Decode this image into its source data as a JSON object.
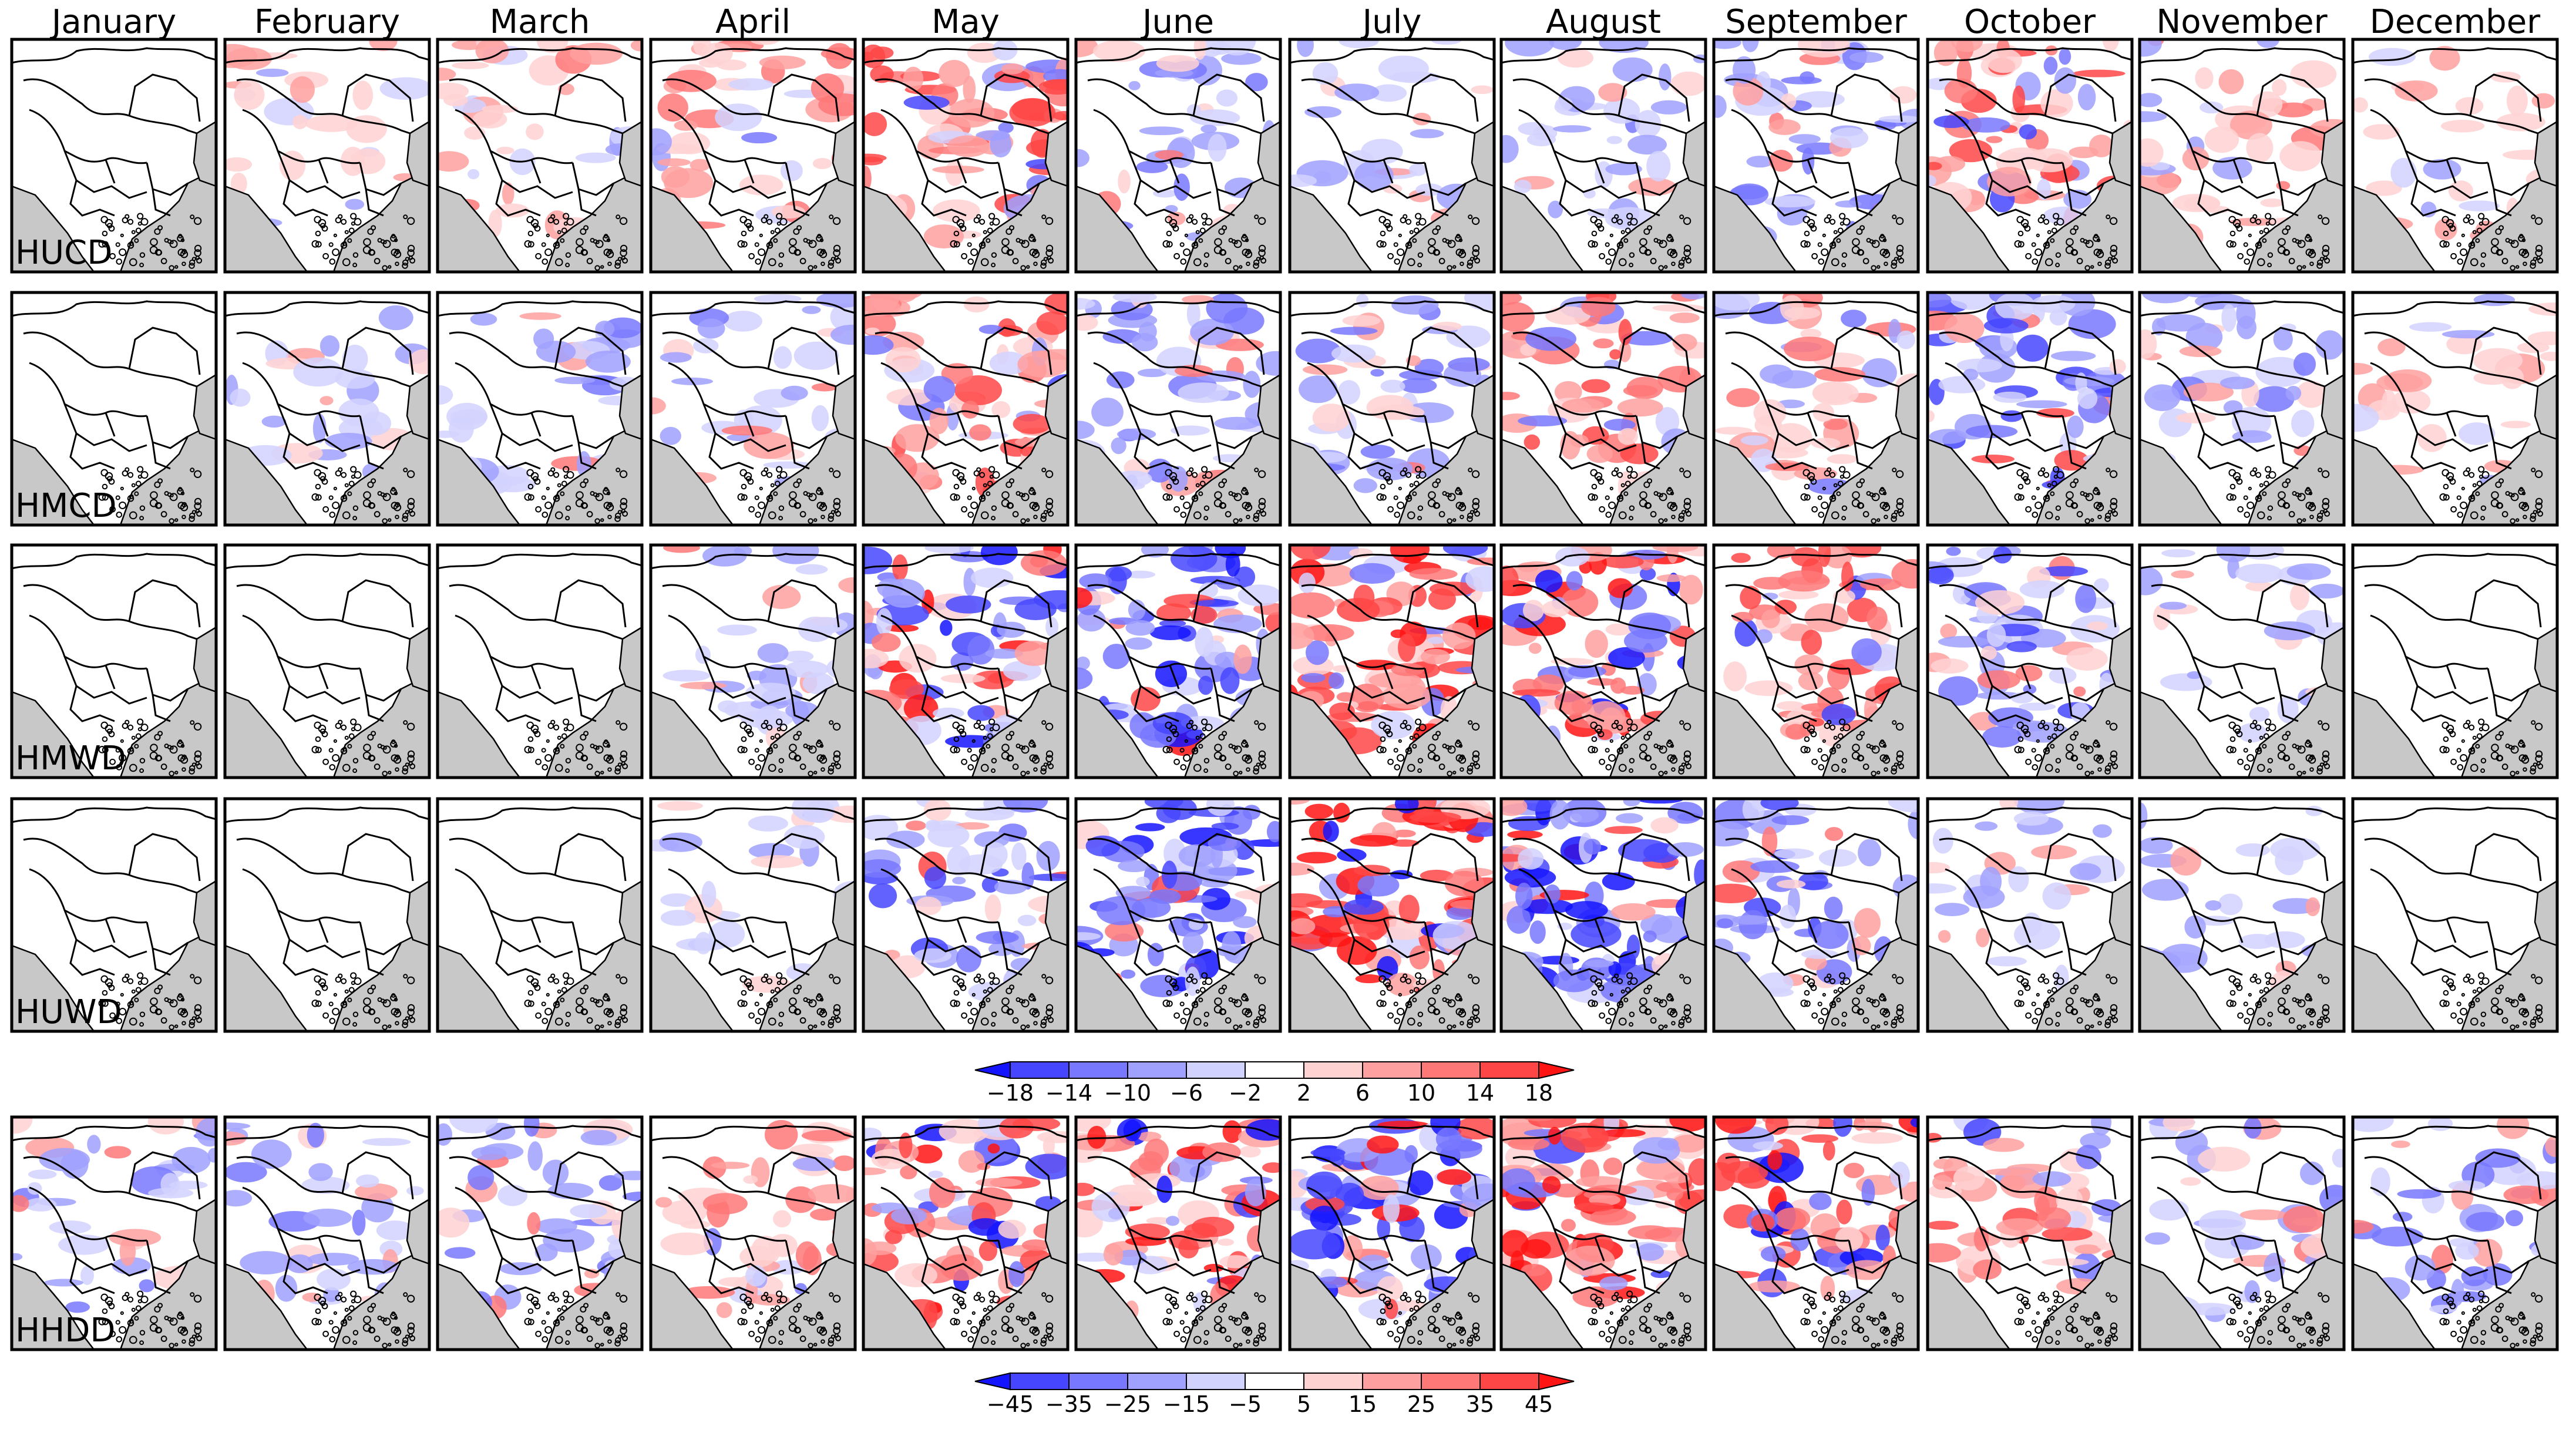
{
  "months": [
    "January",
    "February",
    "March",
    "April",
    "May",
    "June",
    "July",
    "August",
    "September",
    "October",
    "November",
    "December"
  ],
  "rows": [
    {
      "label": "HUCD",
      "group": 1,
      "intensity": [
        0,
        1,
        2,
        3,
        5,
        3,
        1,
        2,
        3,
        5,
        2,
        1
      ],
      "sign": [
        0,
        1,
        1,
        1,
        1,
        -1,
        -1,
        -1,
        -1,
        1,
        1,
        1
      ]
    },
    {
      "label": "HMCD",
      "group": 1,
      "intensity": [
        0,
        1,
        2,
        2,
        5,
        3,
        3,
        4,
        3,
        5,
        2,
        1
      ],
      "sign": [
        0,
        -1,
        -1,
        -1,
        1,
        -1,
        -1,
        1,
        1,
        -1,
        -1,
        1
      ]
    },
    {
      "label": "HMWD",
      "group": 1,
      "intensity": [
        0,
        0,
        0,
        2,
        6,
        6,
        7,
        7,
        5,
        4,
        1,
        0
      ],
      "sign": [
        0,
        0,
        0,
        -1,
        -1,
        -1,
        1,
        1,
        1,
        -1,
        -1,
        0
      ]
    },
    {
      "label": "HUWD",
      "group": 1,
      "intensity": [
        0,
        0,
        0,
        1,
        4,
        6,
        7,
        7,
        4,
        1,
        1,
        0
      ],
      "sign": [
        0,
        0,
        0,
        -1,
        -1,
        -1,
        1,
        -1,
        -1,
        -1,
        -1,
        0
      ]
    },
    {
      "label": "HHDD",
      "group": 2,
      "intensity": [
        2,
        2,
        3,
        3,
        6,
        6,
        7,
        7,
        6,
        4,
        2,
        3
      ],
      "sign": [
        -1,
        -1,
        -1,
        1,
        1,
        1,
        -1,
        1,
        1,
        1,
        -1,
        -1
      ]
    }
  ],
  "colorbars": [
    {
      "ticks": [
        "−18",
        "−14",
        "−10",
        "−6",
        "−2",
        "2",
        "6",
        "10",
        "14",
        "18"
      ]
    },
    {
      "ticks": [
        "−45",
        "−35",
        "−25",
        "−15",
        "−5",
        "5",
        "15",
        "25",
        "35",
        "45"
      ]
    }
  ],
  "colors": {
    "blues": [
      "#1414ff",
      "#4646ff",
      "#7878ff",
      "#a0a0ff",
      "#d2d2ff"
    ],
    "reds": [
      "#ffd2d2",
      "#ffa0a0",
      "#ff7878",
      "#ff4646",
      "#ff1414"
    ],
    "land": "#ffffff",
    "sea": "#c8c8c8",
    "border": "#000000"
  }
}
